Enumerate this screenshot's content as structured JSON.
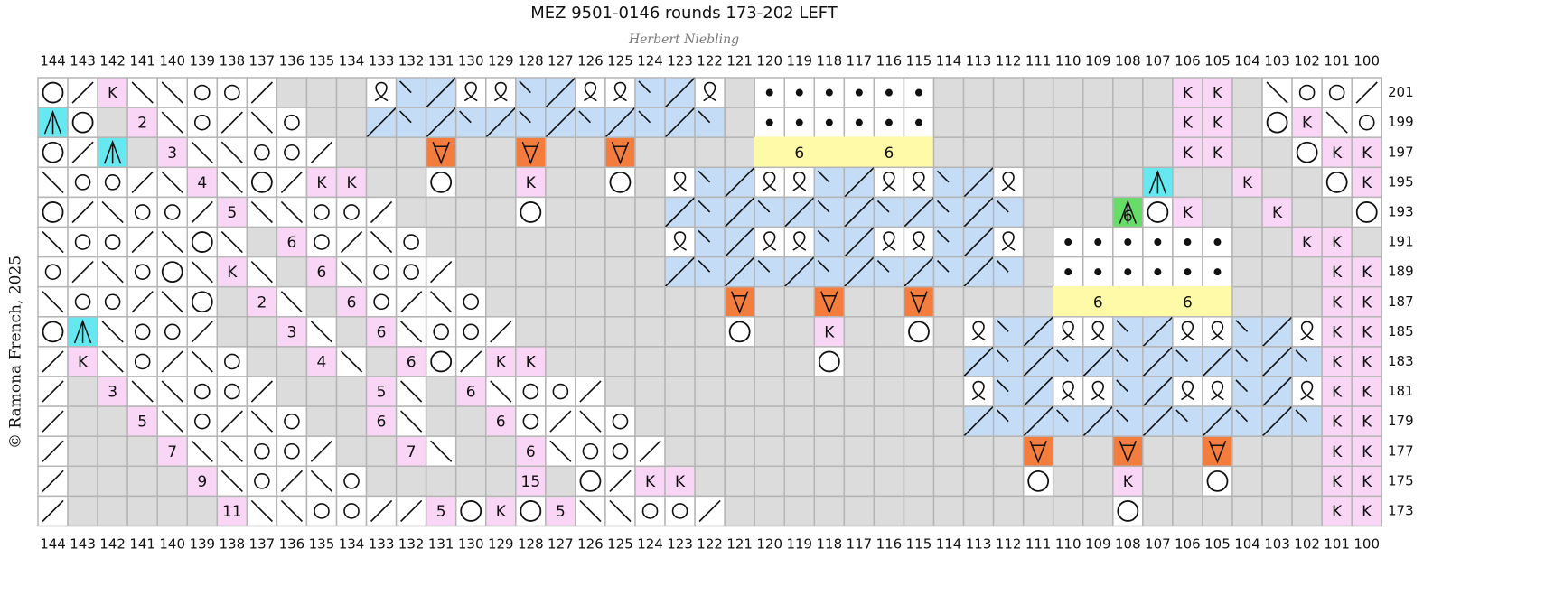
{
  "title": "MEZ 9501-0146 rounds 173-202 LEFT",
  "subtitle": "Herbert Niebling",
  "copyright": "© Ramona French, 2025",
  "columns": [
    144,
    143,
    142,
    141,
    140,
    139,
    138,
    137,
    136,
    135,
    134,
    133,
    132,
    131,
    130,
    129,
    128,
    127,
    126,
    125,
    124,
    123,
    122,
    121,
    120,
    119,
    118,
    117,
    116,
    115,
    114,
    113,
    112,
    111,
    110,
    109,
    108,
    107,
    106,
    105,
    104,
    103,
    102,
    101,
    100
  ],
  "rows": [
    {
      "number": 201,
      "cells": "O/kbboo/   QxxQQxxQQxxQ ......        kk boo/",
      "labels": {
        "142": "K",
        "106": "K",
        "105": "K"
      }
    },
    {
      "number": 199,
      "cells": "cO kbo/bo  xxxxxxxxxxxx ......        kk Okbo",
      "labels": {
        "141": "2",
        "106": "K",
        "105": "K",
        "102": "K"
      }
    },
    {
      "number": 197,
      "cells": "O/c kbboo/   v  v  v    YYYYYY        kk  Okk",
      "labels": {
        "140": "3",
        "119": "6",
        "116": "6",
        "106": "K",
        "105": "K",
        "101": "K",
        "100": "K"
      }
    },
    {
      "number": 195,
      "cells": "boo/bkbO/kk  O  k  O QxxQQxxQQxxQ    c  k  Ok",
      "labels": {
        "139": "4",
        "135": "K",
        "134": "K",
        "128": "K",
        "104": "K",
        "100": "K"
      }
    },
    {
      "number": 193,
      "cells": "O/boo/kbboo/    O    xxxxxxxxxxxx   gOk  k  O",
      "labels": {
        "138": "5",
        "108": "6",
        "106": "K",
        "103": "K"
      }
    },
    {
      "number": 191,
      "cells": "boo/bOb ko/bo        QxxQQxxQQxxQ ......  kk ",
      "labels": {
        "136": "6",
        "102": "K",
        "101": "K"
      }
    },
    {
      "number": 189,
      "cells": "o/boObkb kboo/       xxxxxxxxxxxx ......   kk",
      "labels": {
        "138": "K",
        "135": "6",
        "101": "K",
        "100": "K"
      }
    },
    {
      "number": 187,
      "cells": "boo/bO kb ko/bo        v  v  v    YYYYYY   kk",
      "labels": {
        "137": "2",
        "134": "6",
        "109": "6",
        "106": "6",
        "101": "K",
        "100": "K"
      }
    },
    {
      "number": 185,
      "cells": "Ocboo/  kb kboo/       O  k  O QxxQQxxQQxxQkk",
      "labels": {
        "136": "3",
        "133": "6",
        "118": "K",
        "101": "K",
        "100": "K"
      }
    },
    {
      "number": 183,
      "cells": "/kbo/bo  kb kO/kk         O    xxxxxxxxxxxxkk",
      "labels": {
        "143": "K",
        "135": "4",
        "132": "6",
        "129": "K",
        "128": "K",
        "101": "K",
        "100": "K"
      }
    },
    {
      "number": 181,
      "cells": "/ kbboo/   kb kboo/            QxxQQxxQQxxQkk",
      "labels": {
        "142": "3",
        "133": "5",
        "130": "6",
        "101": "K",
        "100": "K"
      }
    },
    {
      "number": 179,
      "cells": "/  kbo/bo  kb  ko/bo           xxxxxxxxxxxxkk",
      "labels": {
        "141": "5",
        "133": "6",
        "129": "6",
        "101": "K",
        "100": "K"
      }
    },
    {
      "number": 177,
      "cells": "/   kbboo/  kb  kboo/            v  v  v   kk",
      "labels": {
        "140": "7",
        "132": "7",
        "128": "6",
        "101": "K",
        "100": "K"
      }
    },
    {
      "number": 175,
      "cells": "/    kbo/bo     k O/kk           O  k  O   kk",
      "labels": {
        "139": "9",
        "128": "15",
        "124": "K",
        "123": "K",
        "108": "K",
        "101": "K",
        "100": "K"
      }
    },
    {
      "number": 173,
      "cells": "/     kbboo//kOkOkbboo/             O      kk",
      "labels": {
        "138": "11",
        "131": "5",
        "129": "K",
        "127": "5",
        "101": "K",
        "100": "K"
      }
    }
  ]
}
